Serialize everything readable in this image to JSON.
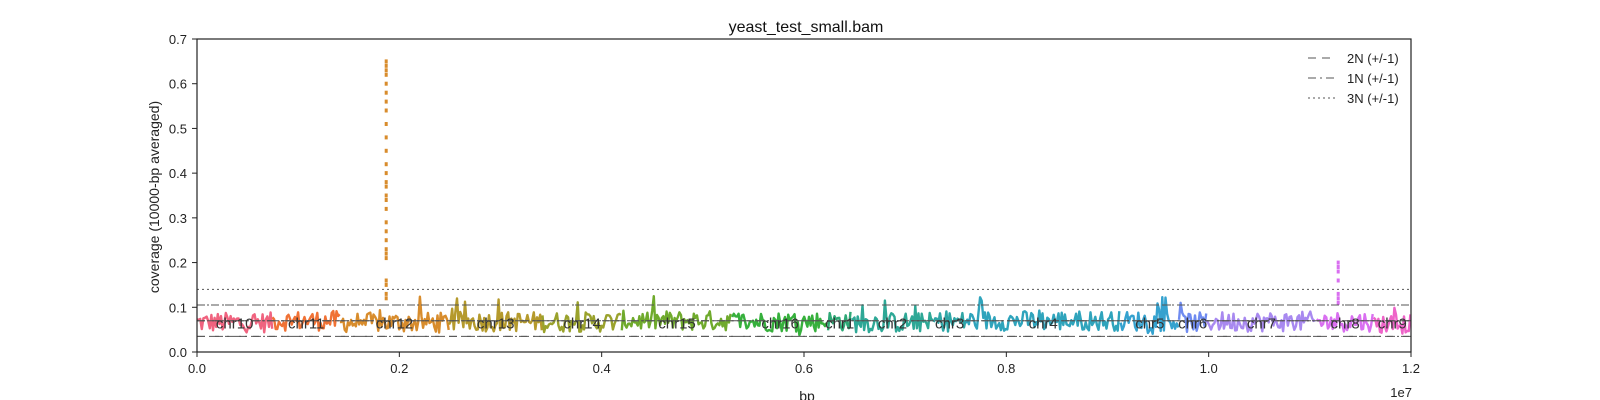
{
  "chart_data": {
    "type": "scatter",
    "title": "yeast_test_small.bam",
    "xlabel": "bp",
    "ylabel": "coverage (10000-bp averaged)",
    "x_offset_label": "1e7",
    "xlim": [
      0,
      1.2
    ],
    "ylim": [
      0,
      0.7
    ],
    "x_ticks": [
      "0.0",
      "0.2",
      "0.4",
      "0.6",
      "0.8",
      "1.0",
      "1.2"
    ],
    "y_ticks": [
      "0.0",
      "0.1",
      "0.2",
      "0.3",
      "0.4",
      "0.5",
      "0.6",
      "0.7"
    ],
    "grid": false,
    "legend_position": "top-right",
    "reference_lines": [
      {
        "name": "2N (+/-1)",
        "style": "dashed",
        "values": [
          0.035,
          0.07,
          0.105
        ]
      },
      {
        "name": "1N (+/-1)",
        "style": "dashdot",
        "values": [
          0.0,
          0.035,
          0.07
        ]
      },
      {
        "name": "3N (+/-1)",
        "style": "dotted",
        "values": [
          0.07,
          0.105,
          0.14
        ]
      }
    ],
    "chromosomes": [
      {
        "name": "chr10",
        "start": 0.0,
        "end": 0.0746,
        "mean": 0.066,
        "color": "#f0637f"
      },
      {
        "name": "chr11",
        "start": 0.0746,
        "end": 0.1413,
        "mean": 0.07,
        "color": "#f07235"
      },
      {
        "name": "chr12",
        "start": 0.1413,
        "end": 0.2491,
        "mean": 0.066,
        "color": "#d88c2c"
      },
      {
        "name": "chr13",
        "start": 0.2491,
        "end": 0.3415,
        "mean": 0.068,
        "color": "#b59a2c"
      },
      {
        "name": "chr14",
        "start": 0.3415,
        "end": 0.4199,
        "mean": 0.067,
        "color": "#9aa22c"
      },
      {
        "name": "chr15",
        "start": 0.4199,
        "end": 0.529,
        "mean": 0.07,
        "color": "#6faa2c"
      },
      {
        "name": "chr16",
        "start": 0.529,
        "end": 0.6238,
        "mean": 0.068,
        "color": "#36b03c"
      },
      {
        "name": "chr1",
        "start": 0.6238,
        "end": 0.6468,
        "mean": 0.069,
        "color": "#2ea876"
      },
      {
        "name": "chr2",
        "start": 0.6468,
        "end": 0.7281,
        "mean": 0.066,
        "color": "#2ea896"
      },
      {
        "name": "chr3",
        "start": 0.7281,
        "end": 0.7598,
        "mean": 0.068,
        "color": "#2ea6a6"
      },
      {
        "name": "chr4",
        "start": 0.7598,
        "end": 0.913,
        "mean": 0.07,
        "color": "#2fa4bc"
      },
      {
        "name": "chr5",
        "start": 0.913,
        "end": 0.9707,
        "mean": 0.069,
        "color": "#35a2cf"
      },
      {
        "name": "chr6",
        "start": 0.9707,
        "end": 0.9977,
        "mean": 0.066,
        "color": "#6f8bf0"
      },
      {
        "name": "chr7",
        "start": 0.9977,
        "end": 1.1068,
        "mean": 0.068,
        "color": "#a889f0"
      },
      {
        "name": "chr8",
        "start": 1.1068,
        "end": 1.163,
        "mean": 0.068,
        "color": "#d96ff0"
      },
      {
        "name": "chr9",
        "start": 1.163,
        "end": 1.207,
        "mean": 0.063,
        "color": "#ee64c8"
      }
    ],
    "peaks": [
      {
        "chromosome": "chr12",
        "x": 0.187,
        "values": [
          0.65,
          0.64,
          0.63,
          0.62,
          0.6,
          0.58,
          0.56,
          0.54,
          0.51,
          0.48,
          0.45,
          0.42,
          0.4,
          0.38,
          0.37,
          0.35,
          0.34,
          0.32,
          0.29,
          0.27,
          0.25,
          0.23,
          0.22,
          0.21,
          0.16,
          0.15,
          0.13,
          0.12
        ]
      },
      {
        "chromosome": "chr8",
        "x": 1.128,
        "values": [
          0.2,
          0.19,
          0.18,
          0.16,
          0.13,
          0.12,
          0.11
        ]
      }
    ]
  }
}
